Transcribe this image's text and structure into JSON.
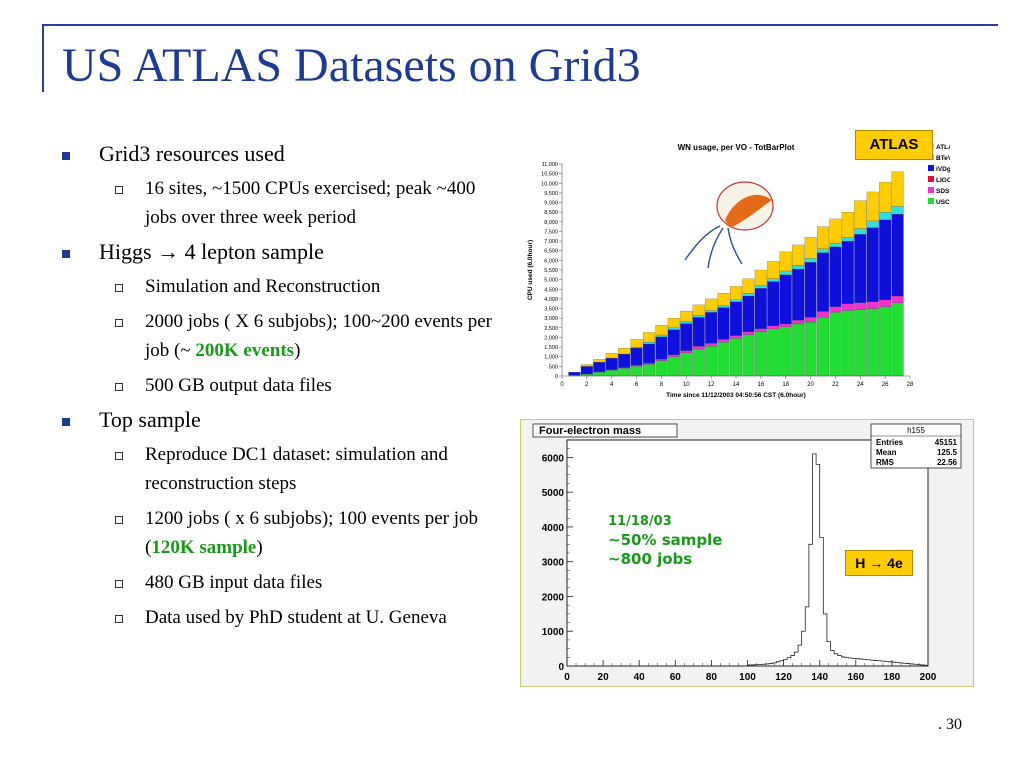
{
  "slide": {
    "title": "US ATLAS Datasets on Grid3",
    "page_number": ". 30",
    "bullets": [
      {
        "text": "Grid3 resources used",
        "sub": [
          "16 sites, ~1500 CPUs exercised; peak ~400 jobs over three week period"
        ]
      },
      {
        "text_pre": "Higgs ",
        "arrow": "→",
        "text_post": " 4 lepton sample",
        "sub": [
          "Simulation and Reconstruction",
          {
            "pre": "2000 jobs ( X 6 subjobs); 100~200 events per job (~ ",
            "hl": "200K events",
            "post": ")"
          },
          "500 GB output data files"
        ]
      },
      {
        "text": "Top sample",
        "sub": [
          "Reproduce DC1 dataset: simulation and reconstruction steps",
          {
            "pre": "1200 jobs ( x 6 subjobs); 100 events per job  (",
            "hl": "120K sample",
            "post": ")"
          },
          "480 GB input data files",
          "Data used by PhD student at U. Geneva"
        ]
      }
    ]
  },
  "chart_data": [
    {
      "type": "bar",
      "stacked": true,
      "title": "WN usage, per VO - TotBarPlot",
      "xlabel": "Time since 11/12/2003 04:50:56 CST (6.0hour)",
      "ylabel": "CPU used (6.0hour)",
      "ylim": [
        0,
        11000
      ],
      "xlim": [
        0,
        28
      ],
      "yticks": [
        0,
        500,
        1000,
        1500,
        2000,
        2500,
        3000,
        3500,
        4000,
        4500,
        5000,
        5500,
        6000,
        6500,
        7000,
        7500,
        8000,
        8500,
        9000,
        9500,
        10000,
        10500,
        11000
      ],
      "ytick_labels": [
        "0",
        "500",
        "1,000",
        "1,500",
        "2,000",
        "2,500",
        "3,000",
        "3,500",
        "4,000",
        "4,500",
        "5,000",
        "5,500",
        "6,000",
        "6,500",
        "7,000",
        "7,500",
        "8,000",
        "8,500",
        "9,000",
        "9,500",
        "10,000",
        "10,500",
        "11,000"
      ],
      "xticks": [
        0,
        2,
        4,
        6,
        8,
        10,
        12,
        14,
        16,
        18,
        20,
        22,
        24,
        26,
        28
      ],
      "x": [
        1,
        2,
        3,
        4,
        5,
        6,
        7,
        8,
        9,
        10,
        11,
        12,
        13,
        14,
        15,
        16,
        17,
        18,
        19,
        20,
        21,
        22,
        23,
        24,
        25,
        26,
        27
      ],
      "legend_position": "right",
      "series": [
        {
          "name": "USCMS",
          "color": "#22dd33",
          "values": [
            50,
            100,
            200,
            300,
            400,
            500,
            600,
            800,
            1000,
            1200,
            1400,
            1550,
            1750,
            1950,
            2150,
            2300,
            2450,
            2550,
            2700,
            2800,
            3050,
            3300,
            3400,
            3450,
            3500,
            3600,
            3800
          ]
        },
        {
          "name": "SDSS",
          "color": "#ee33cc",
          "values": [
            0,
            0,
            20,
            30,
            40,
            50,
            60,
            80,
            100,
            120,
            140,
            150,
            150,
            150,
            150,
            150,
            150,
            150,
            200,
            250,
            300,
            300,
            350,
            350,
            350,
            350,
            350
          ]
        },
        {
          "name": "LIGO",
          "color": "#dd1133",
          "values": [
            0,
            0,
            0,
            0,
            0,
            0,
            0,
            0,
            0,
            0,
            0,
            0,
            0,
            0,
            0,
            0,
            0,
            0,
            0,
            0,
            0,
            0,
            0,
            0,
            0,
            0,
            0
          ]
        },
        {
          "name": "iVDgL",
          "color": "#1010dd",
          "values": [
            150,
            400,
            500,
            600,
            700,
            900,
            1000,
            1150,
            1300,
            1400,
            1500,
            1600,
            1650,
            1750,
            1850,
            2100,
            2300,
            2550,
            2650,
            2850,
            3050,
            3100,
            3250,
            3550,
            3850,
            4150,
            4250
          ]
        },
        {
          "name": "BTeV",
          "color": "#33dddd",
          "values": [
            0,
            0,
            0,
            0,
            0,
            50,
            100,
            100,
            100,
            100,
            100,
            100,
            100,
            100,
            150,
            150,
            150,
            200,
            200,
            200,
            200,
            200,
            200,
            300,
            350,
            400,
            400
          ]
        },
        {
          "name": "ATLAS",
          "color": "#ffcc00",
          "values": [
            0,
            100,
            150,
            250,
            300,
            400,
            500,
            500,
            500,
            550,
            550,
            600,
            650,
            700,
            750,
            800,
            900,
            1000,
            1050,
            1100,
            1150,
            1250,
            1300,
            1450,
            1500,
            1550,
            1800
          ]
        }
      ]
    },
    {
      "type": "histogram",
      "title": "Four-electron mass",
      "xlim": [
        0,
        200
      ],
      "ylim": [
        0,
        6500
      ],
      "xticks": [
        0,
        20,
        40,
        60,
        80,
        100,
        120,
        140,
        160,
        180,
        200
      ],
      "yticks": [
        0,
        1000,
        2000,
        3000,
        4000,
        5000,
        6000
      ],
      "stats": {
        "name": "h155",
        "rows": [
          [
            "Entries",
            "45151"
          ],
          [
            "Mean",
            "125.5"
          ],
          [
            "RMS",
            "22.56"
          ]
        ]
      },
      "bin_width": 2,
      "values": [
        0,
        0,
        0,
        0,
        0,
        0,
        0,
        0,
        0,
        0,
        0,
        0,
        0,
        0,
        0,
        0,
        0,
        0,
        0,
        0,
        0,
        0,
        0,
        0,
        0,
        0,
        0,
        0,
        0,
        0,
        0,
        0,
        0,
        0,
        0,
        0,
        0,
        0,
        0,
        0,
        0,
        0,
        0,
        0,
        0,
        0,
        0,
        0,
        0,
        0,
        30,
        30,
        40,
        40,
        50,
        60,
        70,
        90,
        120,
        150,
        190,
        240,
        300,
        400,
        600,
        1000,
        1700,
        3500,
        6100,
        5800,
        3700,
        1500,
        700,
        450,
        350,
        300,
        260,
        240,
        230,
        220,
        210,
        200,
        190,
        180,
        170,
        160,
        150,
        140,
        130,
        120,
        110,
        100,
        90,
        80,
        70,
        60,
        50,
        40,
        30,
        20
      ]
    }
  ],
  "annotations": {
    "atlas_badge": "ATLAS",
    "date": "11/18/03",
    "sample": "~50% sample",
    "jobs": "~800 jobs",
    "h4e_pre": "H ",
    "h4e_arrow": "→",
    "h4e_post": " 4e"
  }
}
